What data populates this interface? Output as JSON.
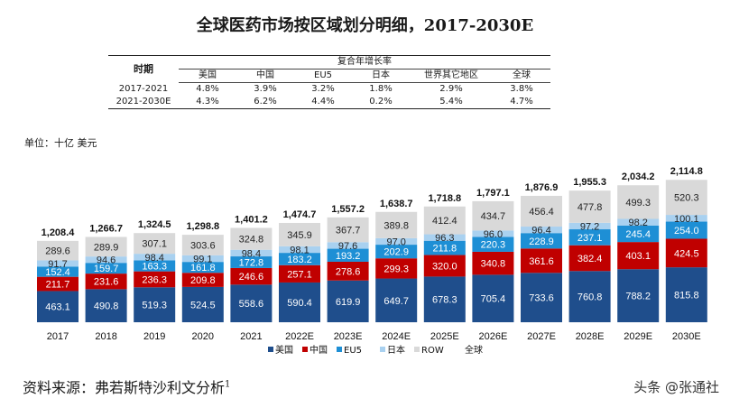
{
  "title": "全球医药市场按区域划分明细，2017-2030E",
  "cagr_table": {
    "period_header": "时期",
    "group_header": "复合年增长率",
    "columns": [
      "美国",
      "中国",
      "EU5",
      "日本",
      "世界其它地区",
      "全球"
    ],
    "rows": [
      {
        "period": "2017-2021",
        "values": [
          "4.8%",
          "3.9%",
          "3.2%",
          "1.8%",
          "2.9%",
          "3.8%"
        ]
      },
      {
        "period": "2021-2030E",
        "values": [
          "4.3%",
          "6.2%",
          "4.4%",
          "0.2%",
          "5.4%",
          "4.7%"
        ]
      }
    ]
  },
  "unit_label": "单位：十亿 美元",
  "source": {
    "text": "资料来源：弗若斯特沙利文分析",
    "sup": "1"
  },
  "watermark": "头条 @张通社",
  "chart_data": {
    "type": "bar",
    "stacked": true,
    "categories": [
      "2017",
      "2018",
      "2019",
      "2020",
      "2021",
      "2022E",
      "2023E",
      "2024E",
      "2025E",
      "2026E",
      "2027E",
      "2028E",
      "2029E",
      "2030E"
    ],
    "series": [
      {
        "name": "美国",
        "color": "#1f4e8c",
        "values": [
          463.1,
          490.8,
          519.3,
          524.5,
          558.6,
          590.4,
          619.9,
          649.7,
          678.3,
          705.4,
          733.6,
          760.8,
          788.2,
          815.8
        ]
      },
      {
        "name": "中国",
        "color": "#c00000",
        "values": [
          211.7,
          231.6,
          236.3,
          209.8,
          246.6,
          257.1,
          278.6,
          299.3,
          320.0,
          340.8,
          361.6,
          382.4,
          403.1,
          424.5
        ]
      },
      {
        "name": "EU5",
        "color": "#1e8fd5",
        "values": [
          152.4,
          159.7,
          163.3,
          161.8,
          172.8,
          183.2,
          193.2,
          202.9,
          211.8,
          220.3,
          228.9,
          237.1,
          245.4,
          254.0
        ]
      },
      {
        "name": "日本",
        "color": "#a9d1f0",
        "values": [
          91.7,
          94.6,
          98.4,
          99.1,
          98.4,
          98.1,
          97.6,
          97.0,
          96.3,
          96.0,
          96.4,
          97.2,
          98.2,
          100.1
        ]
      },
      {
        "name": "ROW",
        "color": "#d9d9d9",
        "values": [
          289.6,
          289.9,
          307.1,
          303.6,
          324.8,
          345.9,
          367.7,
          389.8,
          412.4,
          434.7,
          456.4,
          477.8,
          499.3,
          520.3
        ]
      }
    ],
    "totals": [
      "1,208.4",
      "1,266.7",
      "1,324.5",
      "1,298.8",
      "1,401.2",
      "1,474.7",
      "1,557.2",
      "1,638.7",
      "1,718.8",
      "1,797.1",
      "1,876.9",
      "1,955.3",
      "2,034.2",
      "2,114.8"
    ],
    "total_legend": {
      "name": "全球",
      "color": "#ffffff"
    },
    "ylim": [
      0,
      2200
    ],
    "xlabel": "",
    "ylabel": ""
  }
}
